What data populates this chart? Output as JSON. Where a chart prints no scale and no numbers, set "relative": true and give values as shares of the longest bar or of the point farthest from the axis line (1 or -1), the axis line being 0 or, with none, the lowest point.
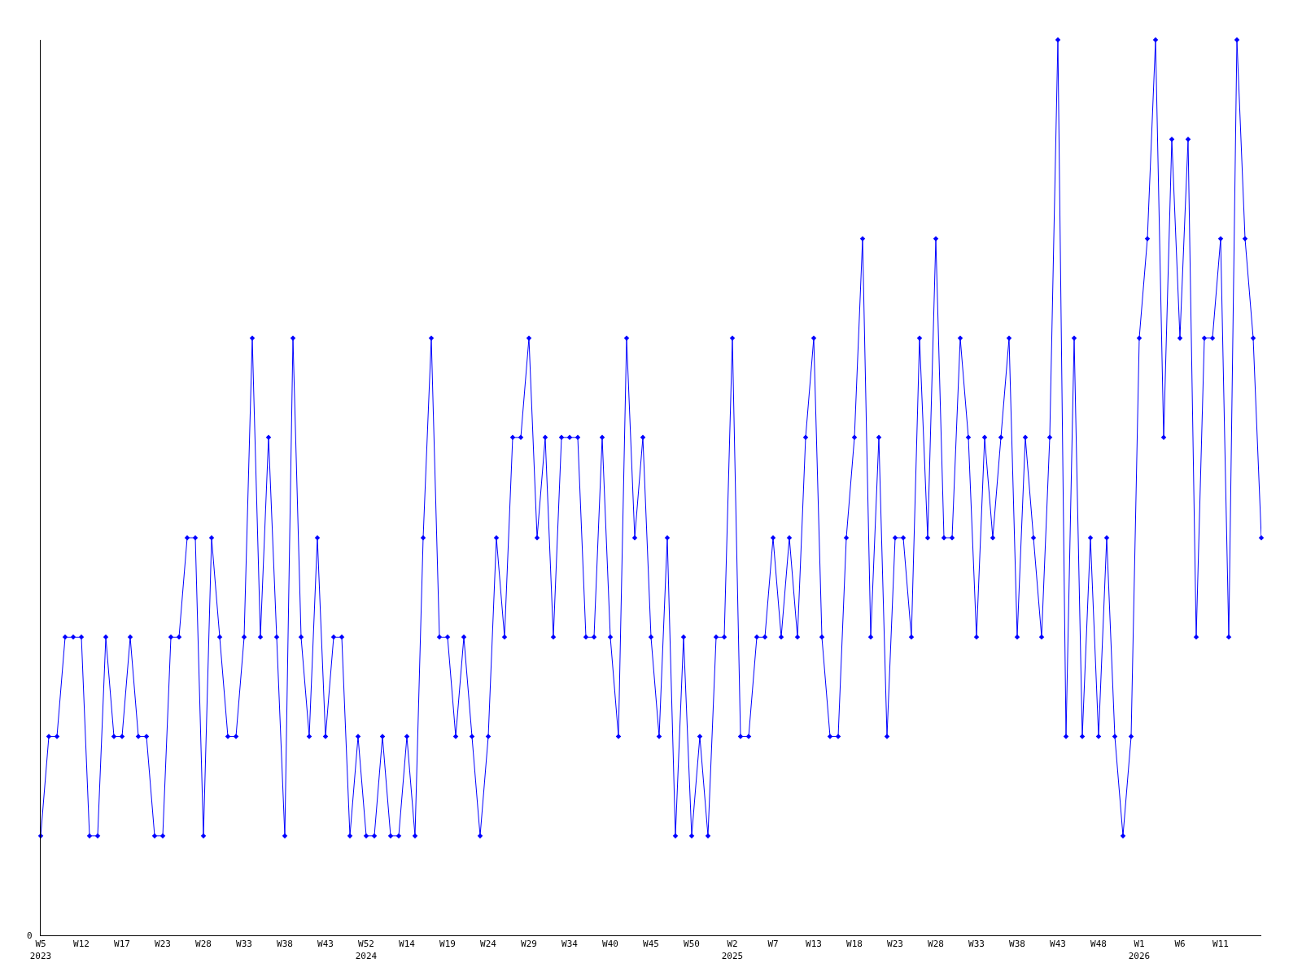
{
  "chart_data": {
    "type": "line",
    "relative": true,
    "color": "#0000ff",
    "marker": "diamond",
    "line_style": "solid",
    "legend": false,
    "annotations": [
      "0"
    ],
    "categories": [
      "W5\n2023",
      null,
      null,
      null,
      null,
      "W12",
      null,
      null,
      null,
      null,
      "W17",
      null,
      null,
      null,
      null,
      "W23",
      null,
      null,
      null,
      null,
      "W28",
      null,
      null,
      null,
      null,
      "W33",
      null,
      null,
      null,
      null,
      "W38",
      null,
      null,
      null,
      null,
      "W43",
      null,
      null,
      null,
      null,
      "W52\n2024",
      null,
      null,
      null,
      null,
      "W14",
      null,
      null,
      null,
      null,
      "W19",
      null,
      null,
      null,
      null,
      "W24",
      null,
      null,
      null,
      null,
      "W29",
      null,
      null,
      null,
      null,
      "W34",
      null,
      null,
      null,
      null,
      "W40",
      null,
      null,
      null,
      null,
      "W45",
      null,
      null,
      null,
      null,
      "W50",
      null,
      null,
      null,
      null,
      "W2\n2025",
      null,
      null,
      null,
      null,
      "W7",
      null,
      null,
      null,
      null,
      "W13",
      null,
      null,
      null,
      null,
      "W18",
      null,
      null,
      null,
      null,
      "W23",
      null,
      null,
      null,
      null,
      "W28",
      null,
      null,
      null,
      null,
      "W33",
      null,
      null,
      null,
      null,
      "W38",
      null,
      null,
      null,
      null,
      "W43",
      null,
      null,
      null,
      null,
      "W48",
      null,
      null,
      null,
      null,
      "W1\n2026",
      null,
      null,
      null,
      null,
      "W6",
      null,
      null,
      null,
      null,
      "W11",
      null,
      null,
      null,
      null,
      null
    ],
    "values": [
      0.111,
      0.222,
      0.222,
      0.333,
      0.333,
      0.333,
      0.111,
      0.111,
      0.333,
      0.222,
      0.222,
      0.333,
      0.222,
      0.222,
      0.111,
      0.111,
      0.333,
      0.333,
      0.444,
      0.444,
      0.111,
      0.444,
      0.333,
      0.222,
      0.222,
      0.333,
      0.667,
      0.333,
      0.556,
      0.333,
      0.111,
      0.667,
      0.333,
      0.222,
      0.444,
      0.222,
      0.333,
      0.333,
      0.111,
      0.222,
      0.111,
      0.111,
      0.222,
      0.111,
      0.111,
      0.222,
      0.111,
      0.444,
      0.667,
      0.333,
      0.333,
      0.222,
      0.333,
      0.222,
      0.111,
      0.222,
      0.444,
      0.333,
      0.556,
      0.556,
      0.667,
      0.444,
      0.556,
      0.333,
      0.556,
      0.556,
      0.556,
      0.333,
      0.333,
      0.556,
      0.333,
      0.222,
      0.667,
      0.444,
      0.556,
      0.333,
      0.222,
      0.444,
      0.111,
      0.333,
      0.111,
      0.222,
      0.111,
      0.333,
      0.333,
      0.667,
      0.222,
      0.222,
      0.333,
      0.333,
      0.444,
      0.333,
      0.444,
      0.333,
      0.556,
      0.667,
      0.333,
      0.222,
      0.222,
      0.444,
      0.556,
      0.778,
      0.333,
      0.556,
      0.222,
      0.444,
      0.444,
      0.333,
      0.667,
      0.444,
      0.778,
      0.444,
      0.444,
      0.667,
      0.556,
      0.333,
      0.556,
      0.444,
      0.556,
      0.667,
      0.333,
      0.556,
      0.444,
      0.333,
      0.556,
      1,
      0.222,
      0.667,
      0.222,
      0.444,
      0.222,
      0.444,
      0.222,
      0.111,
      0.222,
      0.667,
      0.778,
      1,
      0.556,
      0.889,
      0.667,
      0.889,
      0.333,
      0.667,
      0.667,
      0.778,
      0.333,
      1,
      0.778,
      0.667,
      0.444
    ]
  }
}
